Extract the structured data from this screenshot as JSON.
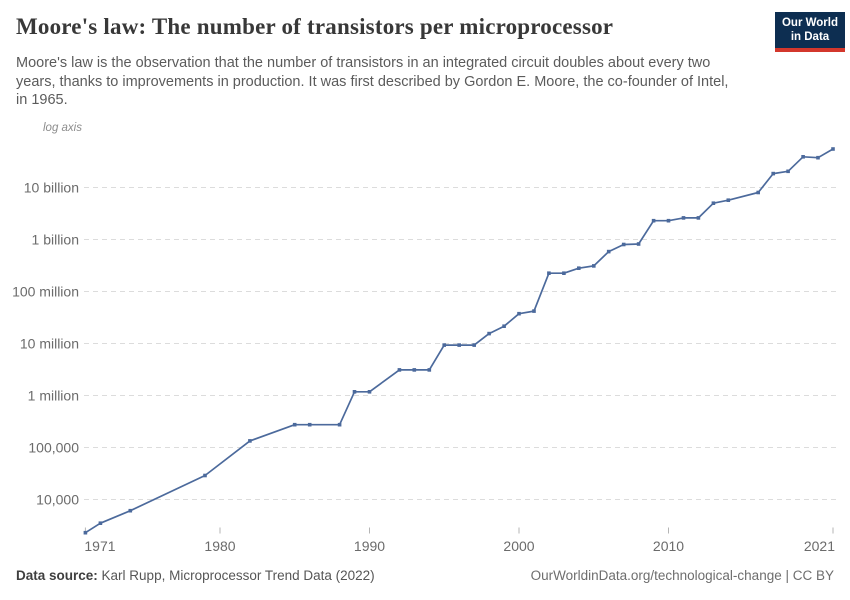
{
  "header": {
    "title": "Moore's law: The number of transistors per microprocessor",
    "subtitle_lines": [
      "Moore's law is the observation that the number of transistors in an integrated circuit doubles about every two",
      "years, thanks to improvements in production. It was first described by Gordon E. Moore, the co-founder of Intel,",
      "in 1965."
    ],
    "logo": {
      "line1": "Our World",
      "line2": "in Data",
      "bg_color": "#0d2e51",
      "stripe_color": "#d3372c"
    }
  },
  "chart_data": {
    "type": "line",
    "title": "Moore's law: The number of transistors per microprocessor",
    "axis_note": "log axis",
    "log_scale": true,
    "grid": "horizontal-dashed",
    "legend": "none",
    "line_color": "#4c6a9c",
    "xlabel": "",
    "ylabel": "",
    "xlim": [
      1971,
      2021
    ],
    "ylim": [
      2300,
      55000000000
    ],
    "x_ticks": [
      1971,
      1980,
      1990,
      2000,
      2010,
      2021
    ],
    "y_ticks": [
      {
        "value": 10000,
        "label": "10,000"
      },
      {
        "value": 100000,
        "label": "100,000"
      },
      {
        "value": 1000000,
        "label": "1 million"
      },
      {
        "value": 10000000,
        "label": "10 million"
      },
      {
        "value": 100000000,
        "label": "100 million"
      },
      {
        "value": 1000000000,
        "label": "1 billion"
      },
      {
        "value": 10000000000,
        "label": "10 billion"
      }
    ],
    "x": [
      1971,
      1972,
      1974,
      1979,
      1982,
      1985,
      1986,
      1988,
      1989,
      1990,
      1992,
      1993,
      1994,
      1995,
      1996,
      1997,
      1998,
      1999,
      2000,
      2001,
      2002,
      2003,
      2004,
      2005,
      2006,
      2007,
      2008,
      2009,
      2010,
      2011,
      2012,
      2013,
      2014,
      2016,
      2017,
      2018,
      2019,
      2020,
      2021
    ],
    "y": [
      2300,
      3500,
      6100,
      29000,
      134000,
      275000,
      275000,
      275000,
      1180000,
      1180000,
      3100000,
      3100000,
      3100000,
      9300000,
      9300000,
      9300000,
      15500000,
      21500000,
      37500000,
      42000000,
      225000000,
      225000000,
      280000000,
      310000000,
      585000000,
      800000000,
      820000000,
      2300000000,
      2300000000,
      2600000000,
      2600000000,
      5000000000,
      5700000000,
      8000000000,
      18500000000,
      20500000000,
      39000000000,
      37500000000,
      55000000000
    ]
  },
  "footer": {
    "source_label": "Data source:",
    "source_text": "Karl Rupp, Microprocessor Trend Data (2022)",
    "credit": "OurWorldinData.org/technological-change | CC BY"
  }
}
